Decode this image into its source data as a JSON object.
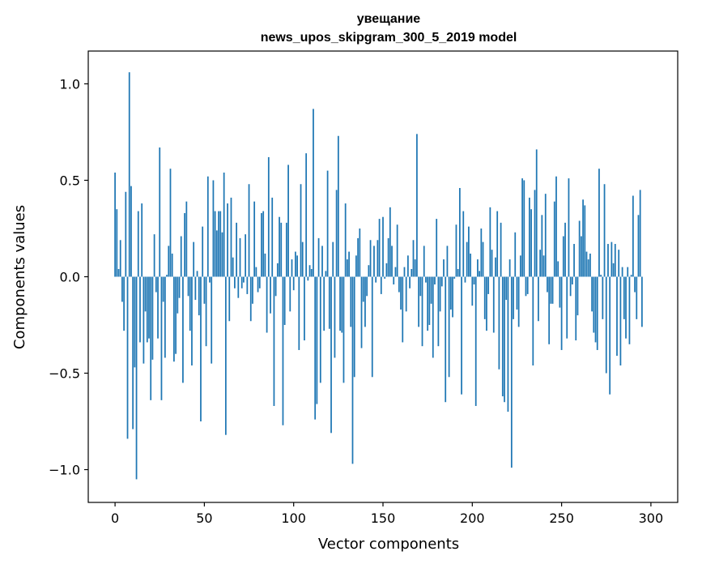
{
  "chart_data": {
    "type": "bar",
    "title": "увещание",
    "subtitle": "news_upos_skipgram_300_5_2019 model",
    "xlabel": "Vector components",
    "ylabel": "Components values",
    "xlim": [
      -15,
      315
    ],
    "ylim": [
      -1.17,
      1.17
    ],
    "xticks": [
      0,
      50,
      100,
      150,
      200,
      250,
      300
    ],
    "yticks": [
      1.0,
      0.5,
      0.0,
      -0.5,
      -1.0
    ],
    "xtick_labels": [
      "0",
      "50",
      "100",
      "150",
      "200",
      "250",
      "300"
    ],
    "ytick_labels": [
      "1.0",
      "0.5",
      "0.0",
      "−0.5",
      "−1.0"
    ],
    "bar_color": "#1f77b4",
    "grid": false,
    "values": [
      0.54,
      0.35,
      0.04,
      0.19,
      -0.13,
      -0.28,
      0.44,
      -0.84,
      1.06,
      0.47,
      -0.79,
      -0.47,
      -1.05,
      0.34,
      -0.34,
      0.38,
      -0.45,
      -0.18,
      -0.34,
      -0.32,
      -0.64,
      -0.43,
      0.22,
      -0.08,
      -0.32,
      0.67,
      -0.64,
      -0.13,
      -0.42,
      0.01,
      0.16,
      0.56,
      0.12,
      -0.44,
      -0.4,
      -0.19,
      -0.11,
      0.21,
      -0.55,
      0.33,
      0.39,
      -0.1,
      -0.28,
      -0.46,
      0.18,
      -0.12,
      0.03,
      -0.2,
      -0.75,
      0.26,
      -0.14,
      -0.36,
      0.52,
      -0.03,
      -0.45,
      0.5,
      0.34,
      0.24,
      0.34,
      0.34,
      0.23,
      0.54,
      -0.82,
      0.38,
      -0.23,
      0.41,
      0.1,
      -0.06,
      0.28,
      -0.11,
      0.2,
      -0.06,
      -0.03,
      0.22,
      -0.09,
      0.48,
      -0.23,
      -0.14,
      0.39,
      0.05,
      -0.08,
      -0.06,
      0.33,
      0.34,
      0.12,
      -0.29,
      0.62,
      -0.19,
      0.41,
      -0.67,
      -0.1,
      0.07,
      0.31,
      0.28,
      -0.77,
      -0.25,
      0.28,
      0.58,
      -0.18,
      0.09,
      -0.07,
      0.13,
      0.11,
      -0.38,
      0.48,
      0.18,
      -0.33,
      0.64,
      -0.02,
      0.06,
      0.04,
      0.87,
      -0.74,
      -0.66,
      0.2,
      -0.55,
      0.16,
      -0.28,
      0.03,
      0.55,
      -0.27,
      -0.81,
      0.18,
      -0.42,
      0.45,
      0.73,
      -0.28,
      -0.29,
      -0.55,
      0.38,
      0.09,
      0.13,
      -0.26,
      -0.97,
      -0.52,
      0.11,
      0.2,
      0.25,
      -0.37,
      -0.13,
      -0.26,
      -0.1,
      0.06,
      0.19,
      -0.52,
      0.16,
      -0.03,
      0.19,
      0.3,
      -0.09,
      0.31,
      -0.01,
      0.07,
      0.2,
      0.36,
      0.16,
      -0.04,
      0.05,
      0.27,
      -0.08,
      -0.17,
      -0.34,
      0.05,
      -0.18,
      0.11,
      -0.06,
      0.04,
      0.19,
      0.09,
      0.74,
      -0.26,
      -0.1,
      -0.36,
      0.16,
      -0.03,
      -0.28,
      -0.25,
      -0.14,
      -0.42,
      -0.04,
      0.3,
      -0.36,
      -0.18,
      -0.05,
      0.09,
      -0.65,
      0.16,
      -0.52,
      -0.17,
      -0.21,
      -0.01,
      0.27,
      0.04,
      0.46,
      -0.61,
      0.34,
      -0.03,
      0.18,
      0.26,
      0.12,
      -0.15,
      -0.04,
      -0.67,
      0.09,
      0.03,
      0.25,
      0.18,
      -0.22,
      -0.28,
      -0.09,
      0.36,
      0.14,
      -0.29,
      0.1,
      0.34,
      -0.48,
      0.28,
      -0.62,
      -0.65,
      -0.12,
      -0.7,
      0.09,
      -0.99,
      -0.22,
      0.23,
      -0.17,
      -0.26,
      0.11,
      0.51,
      0.5,
      -0.1,
      -0.09,
      0.41,
      0.35,
      -0.46,
      0.45,
      0.66,
      -0.23,
      0.14,
      0.32,
      0.11,
      0.43,
      -0.08,
      -0.35,
      -0.14,
      -0.14,
      0.39,
      0.52,
      0.08,
      -0.16,
      -0.38,
      0.21,
      0.28,
      -0.32,
      0.51,
      -0.1,
      -0.04,
      0.17,
      -0.33,
      -0.2,
      0.29,
      0.21,
      0.4,
      0.37,
      0.13,
      0.09,
      0.12,
      -0.18,
      -0.29,
      -0.34,
      -0.38,
      0.56,
      0.01,
      -0.22,
      0.48,
      -0.5,
      0.17,
      -0.61,
      0.18,
      0.07,
      0.17,
      -0.41,
      0.14,
      -0.46,
      0.05,
      -0.22,
      -0.32,
      0.05,
      -0.35,
      0.01,
      0.42,
      -0.08,
      -0.22,
      0.32,
      0.45,
      -0.26
    ]
  }
}
